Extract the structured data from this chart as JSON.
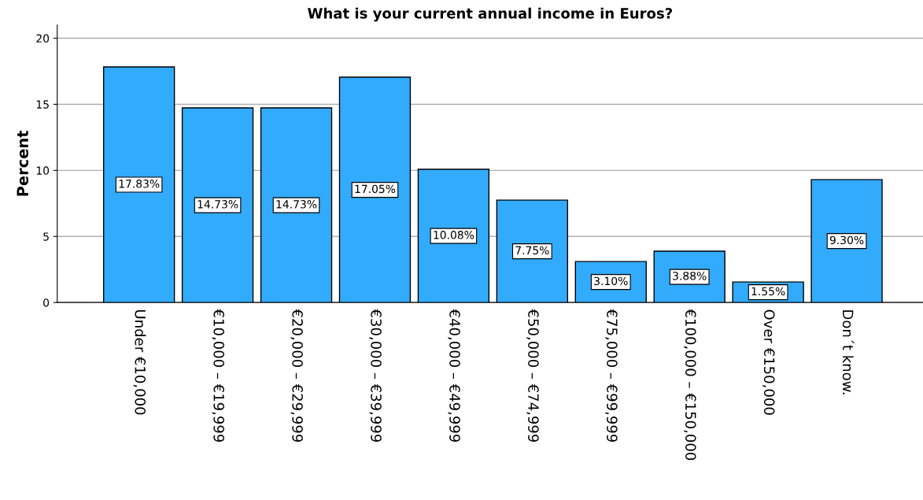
{
  "chart_data": {
    "type": "bar",
    "title": "What is your current annual income in Euros?",
    "ylabel": "Percent",
    "categories": [
      "Under €10,000",
      "€10,000 – €19,999",
      "€20,000 – €29,999",
      "€30,000 – €39,999",
      "€40,000 – €49,999",
      "€50,000 – €74,999",
      "€75,000 – €99,999",
      "€100,000 – €150,000",
      "Over €150,000",
      "Don´t know."
    ],
    "values": [
      17.83,
      14.73,
      14.73,
      17.05,
      10.08,
      7.75,
      3.1,
      3.88,
      1.55,
      9.3
    ],
    "value_labels": [
      "17.83%",
      "14.73%",
      "14.73%",
      "17.05%",
      "10.08%",
      "7.75%",
      "3.10%",
      "3.88%",
      "1.55%",
      "9.30%"
    ],
    "color": "#33abfc",
    "ylim": [
      0,
      21
    ],
    "yticks": [
      0,
      5,
      10,
      15,
      20
    ],
    "grid": "y",
    "legend": false
  }
}
